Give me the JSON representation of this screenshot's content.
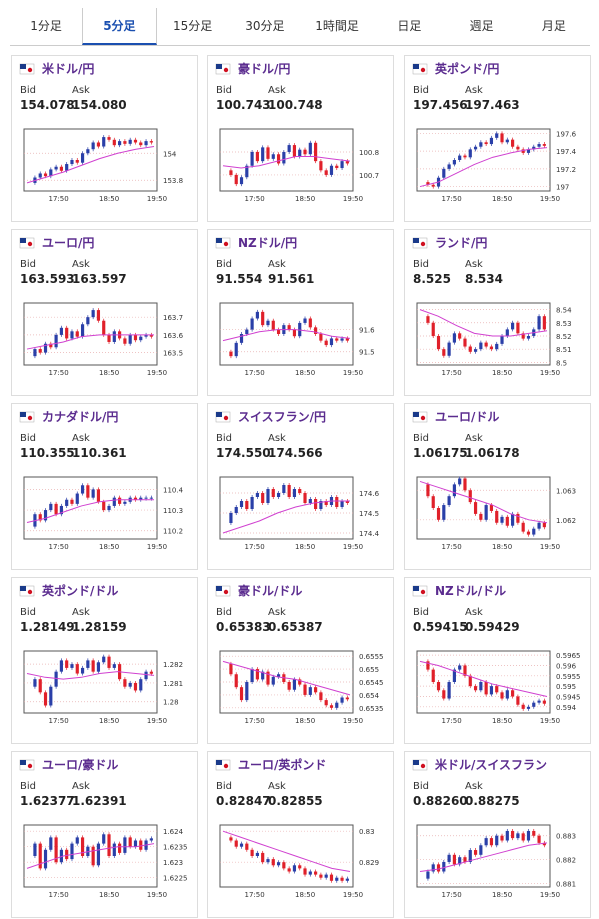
{
  "tabs": [
    "1分足",
    "5分足",
    "15分足",
    "30分足",
    "1時間足",
    "日足",
    "週足",
    "月足"
  ],
  "active_tab": 1,
  "candle_up_color": "#2a3fa8",
  "candle_down_color": "#e0202a",
  "ma_color": "#d040d0",
  "panels": [
    {
      "title": "米ドル/円",
      "bid_label": "Bid",
      "ask_label": "Ask",
      "bid": "154.078",
      "ask": "154.080",
      "ylim": [
        153.72,
        154.18
      ],
      "yticks": [
        154,
        153.8
      ],
      "x_labels": [
        "17:50",
        "18:50",
        "19:50"
      ],
      "closes": [
        153.78,
        153.82,
        153.85,
        153.83,
        153.88,
        153.9,
        153.87,
        153.92,
        153.95,
        153.93,
        154.0,
        154.03,
        154.08,
        154.05,
        154.12,
        154.1,
        154.06,
        154.09,
        154.07,
        154.1,
        154.08,
        154.06,
        154.09,
        154.08
      ],
      "ma": [
        153.78,
        153.82,
        153.86,
        153.91,
        153.96,
        154.0,
        154.03,
        154.05
      ]
    },
    {
      "title": "豪ドル/円",
      "bid_label": "Bid",
      "ask_label": "Ask",
      "bid": "100.743",
      "ask": "100.748",
      "ylim": [
        100.63,
        100.9
      ],
      "yticks": [
        100.8,
        100.7
      ],
      "x_labels": [
        "17:50",
        "18:50",
        "19:50"
      ],
      "closes": [
        100.72,
        100.7,
        100.66,
        100.69,
        100.74,
        100.8,
        100.76,
        100.82,
        100.77,
        100.79,
        100.75,
        100.8,
        100.83,
        100.78,
        100.81,
        100.79,
        100.84,
        100.76,
        100.72,
        100.7,
        100.74,
        100.73,
        100.76,
        100.75
      ],
      "ma": [
        100.74,
        100.73,
        100.74,
        100.76,
        100.78,
        100.78,
        100.77,
        100.76
      ]
    },
    {
      "title": "英ポンド/円",
      "bid_label": "Bid",
      "ask_label": "Ask",
      "bid": "197.456",
      "ask": "197.463",
      "ylim": [
        196.95,
        197.65
      ],
      "yticks": [
        197.6,
        197.4,
        197.2,
        197
      ],
      "x_labels": [
        "17:50",
        "18:50",
        "19:50"
      ],
      "closes": [
        197.05,
        197.02,
        197.0,
        197.1,
        197.2,
        197.25,
        197.3,
        197.35,
        197.33,
        197.42,
        197.45,
        197.5,
        197.48,
        197.55,
        197.6,
        197.5,
        197.53,
        197.45,
        197.42,
        197.38,
        197.42,
        197.45,
        197.48,
        197.46
      ],
      "ma": [
        197.0,
        197.05,
        197.15,
        197.25,
        197.33,
        197.38,
        197.42,
        197.44
      ]
    },
    {
      "title": "ユーロ/円",
      "bid_label": "Bid",
      "ask_label": "Ask",
      "bid": "163.593",
      "ask": "163.597",
      "ylim": [
        163.43,
        163.78
      ],
      "yticks": [
        163.7,
        163.6,
        163.5
      ],
      "x_labels": [
        "17:50",
        "18:50",
        "19:50"
      ],
      "closes": [
        163.48,
        163.52,
        163.5,
        163.55,
        163.53,
        163.6,
        163.64,
        163.58,
        163.62,
        163.59,
        163.66,
        163.7,
        163.74,
        163.68,
        163.6,
        163.56,
        163.62,
        163.58,
        163.55,
        163.6,
        163.57,
        163.59,
        163.6,
        163.59
      ],
      "ma": [
        163.52,
        163.54,
        163.56,
        163.59,
        163.6,
        163.6,
        163.6,
        163.6
      ]
    },
    {
      "title": "NZドル/円",
      "bid_label": "Bid",
      "ask_label": "Ask",
      "bid": "91.554",
      "ask": "91.561",
      "ylim": [
        91.44,
        91.72
      ],
      "yticks": [
        91.6,
        91.5
      ],
      "x_labels": [
        "17:50",
        "18:50",
        "19:50"
      ],
      "closes": [
        91.5,
        91.48,
        91.54,
        91.58,
        91.6,
        91.65,
        91.68,
        91.62,
        91.64,
        91.6,
        91.58,
        91.62,
        91.6,
        91.57,
        91.63,
        91.65,
        91.61,
        91.58,
        91.55,
        91.53,
        91.56,
        91.55,
        91.56,
        91.55
      ],
      "ma": [
        91.55,
        91.57,
        91.59,
        91.6,
        91.6,
        91.59,
        91.57,
        91.56
      ]
    },
    {
      "title": "ランド/円",
      "bid_label": "Bid",
      "ask_label": "Ask",
      "bid": "8.525",
      "ask": "8.534",
      "ylim": [
        8.498,
        8.545
      ],
      "yticks": [
        8.54,
        8.53,
        8.52,
        8.51,
        8.5
      ],
      "x_labels": [
        "17:50",
        "18:50",
        "19:50"
      ],
      "closes": [
        8.535,
        8.53,
        8.52,
        8.51,
        8.505,
        8.515,
        8.522,
        8.518,
        8.512,
        8.508,
        8.51,
        8.515,
        8.512,
        8.51,
        8.514,
        8.52,
        8.525,
        8.53,
        8.522,
        8.518,
        8.52,
        8.525,
        8.535,
        8.525
      ],
      "ma": [
        8.54,
        8.535,
        8.528,
        8.522,
        8.52,
        8.52,
        8.522,
        8.524
      ]
    },
    {
      "title": "カナダドル/円",
      "bid_label": "Bid",
      "ask_label": "Ask",
      "bid": "110.355",
      "ask": "110.361",
      "ylim": [
        110.16,
        110.46
      ],
      "yticks": [
        110.4,
        110.3,
        110.2
      ],
      "x_labels": [
        "17:50",
        "18:50",
        "19:50"
      ],
      "closes": [
        110.22,
        110.28,
        110.25,
        110.3,
        110.33,
        110.28,
        110.32,
        110.35,
        110.33,
        110.38,
        110.42,
        110.36,
        110.4,
        110.34,
        110.3,
        110.32,
        110.36,
        110.33,
        110.34,
        110.36,
        110.35,
        110.36,
        110.36,
        110.36
      ],
      "ma": [
        110.24,
        110.26,
        110.29,
        110.32,
        110.34,
        110.35,
        110.35,
        110.35
      ]
    },
    {
      "title": "スイスフラン/円",
      "bid_label": "Bid",
      "ask_label": "Ask",
      "bid": "174.550",
      "ask": "174.566",
      "ylim": [
        174.37,
        174.68
      ],
      "yticks": [
        174.6,
        174.5,
        174.4
      ],
      "x_labels": [
        "17:50",
        "18:50",
        "19:50"
      ],
      "closes": [
        174.45,
        174.5,
        174.53,
        174.56,
        174.52,
        174.58,
        174.6,
        174.55,
        174.62,
        174.58,
        174.6,
        174.64,
        174.58,
        174.62,
        174.6,
        174.55,
        174.57,
        174.52,
        174.56,
        174.54,
        174.58,
        174.53,
        174.56,
        174.55
      ],
      "ma": [
        174.4,
        174.43,
        174.46,
        174.5,
        174.53,
        174.55,
        174.56,
        174.56
      ]
    },
    {
      "title": "ユーロ/ドル",
      "bid_label": "Bid",
      "ask_label": "Ask",
      "bid": "1.06175",
      "ask": "1.06178",
      "ylim": [
        1.06135,
        1.06345
      ],
      "yticks": [
        1.063,
        1.062
      ],
      "x_labels": [
        "17:50",
        "18:50",
        "19:50"
      ],
      "closes": [
        1.0632,
        1.0628,
        1.0624,
        1.062,
        1.0625,
        1.0628,
        1.0632,
        1.0634,
        1.063,
        1.0626,
        1.0622,
        1.062,
        1.0625,
        1.0623,
        1.0619,
        1.0621,
        1.0618,
        1.0622,
        1.0619,
        1.0616,
        1.0615,
        1.0617,
        1.0619,
        1.06175
      ],
      "ma": [
        1.0633,
        1.0631,
        1.0629,
        1.0627,
        1.0625,
        1.0622,
        1.062,
        1.0619
      ]
    },
    {
      "title": "英ポンド/ドル",
      "bid_label": "Bid",
      "ask_label": "Ask",
      "bid": "1.28149",
      "ask": "1.28159",
      "ylim": [
        1.2794,
        1.2827
      ],
      "yticks": [
        1.282,
        1.281,
        1.28
      ],
      "x_labels": [
        "17:50",
        "18:50",
        "19:50"
      ],
      "closes": [
        1.2808,
        1.2812,
        1.2805,
        1.2798,
        1.2808,
        1.2816,
        1.2822,
        1.2818,
        1.282,
        1.2815,
        1.2818,
        1.2822,
        1.2816,
        1.2821,
        1.2824,
        1.2818,
        1.282,
        1.2812,
        1.2808,
        1.281,
        1.2806,
        1.2812,
        1.2816,
        1.28149
      ],
      "ma": [
        1.2815,
        1.2813,
        1.2812,
        1.2813,
        1.2815,
        1.2816,
        1.2815,
        1.2814
      ]
    },
    {
      "title": "豪ドル/ドル",
      "bid_label": "Bid",
      "ask_label": "Ask",
      "bid": "0.65383",
      "ask": "0.65387",
      "ylim": [
        0.6533,
        0.6557
      ],
      "yticks": [
        0.6555,
        0.655,
        0.6545,
        0.654,
        0.6535
      ],
      "x_labels": [
        "17:50",
        "18:50",
        "19:50"
      ],
      "closes": [
        0.6552,
        0.6548,
        0.6543,
        0.6538,
        0.6545,
        0.655,
        0.6546,
        0.6549,
        0.6544,
        0.6547,
        0.6548,
        0.6545,
        0.6542,
        0.6546,
        0.6544,
        0.654,
        0.6543,
        0.6541,
        0.6538,
        0.6536,
        0.6535,
        0.6537,
        0.6539,
        0.65383
      ],
      "ma": [
        0.6553,
        0.6551,
        0.6549,
        0.6547,
        0.6546,
        0.6544,
        0.6542,
        0.654
      ]
    },
    {
      "title": "NZドル/ドル",
      "bid_label": "Bid",
      "ask_label": "Ask",
      "bid": "0.59415",
      "ask": "0.59429",
      "ylim": [
        0.5937,
        0.5967
      ],
      "yticks": [
        0.5965,
        0.596,
        0.5955,
        0.595,
        0.5945,
        0.594
      ],
      "x_labels": [
        "17:50",
        "18:50",
        "19:50"
      ],
      "closes": [
        0.5962,
        0.5958,
        0.5952,
        0.5948,
        0.5944,
        0.5952,
        0.5958,
        0.596,
        0.5955,
        0.595,
        0.5948,
        0.5952,
        0.5946,
        0.595,
        0.5947,
        0.5944,
        0.5948,
        0.5945,
        0.5941,
        0.5939,
        0.594,
        0.5942,
        0.5943,
        0.59415
      ],
      "ma": [
        0.5962,
        0.596,
        0.5957,
        0.5954,
        0.5951,
        0.5949,
        0.5947,
        0.5945
      ]
    },
    {
      "title": "ユーロ/豪ドル",
      "bid_label": "Bid",
      "ask_label": "Ask",
      "bid": "1.62377",
      "ask": "1.62391",
      "ylim": [
        1.6222,
        1.6242
      ],
      "yticks": [
        1.624,
        1.6235,
        1.623,
        1.6225
      ],
      "x_labels": [
        "17:50",
        "18:50",
        "19:50"
      ],
      "closes": [
        1.6232,
        1.6236,
        1.6228,
        1.6234,
        1.6238,
        1.623,
        1.6234,
        1.6231,
        1.6236,
        1.6238,
        1.6232,
        1.6235,
        1.6229,
        1.6236,
        1.6239,
        1.6232,
        1.6236,
        1.6233,
        1.6238,
        1.6235,
        1.6237,
        1.6234,
        1.6237,
        1.62377
      ],
      "ma": [
        1.6228,
        1.623,
        1.6232,
        1.6233,
        1.6234,
        1.6235,
        1.6235,
        1.6236
      ]
    },
    {
      "title": "ユーロ/英ポンド",
      "bid_label": "Bid",
      "ask_label": "Ask",
      "bid": "0.82847",
      "ask": "0.82855",
      "ylim": [
        0.8282,
        0.8302
      ],
      "yticks": [
        0.83,
        0.829
      ],
      "x_labels": [
        "17:50",
        "18:50",
        "19:50"
      ],
      "closes": [
        0.8298,
        0.8297,
        0.8295,
        0.8296,
        0.8294,
        0.8292,
        0.8293,
        0.829,
        0.8291,
        0.8289,
        0.829,
        0.8288,
        0.8287,
        0.8289,
        0.8288,
        0.8286,
        0.8287,
        0.8286,
        0.8285,
        0.8286,
        0.8284,
        0.8285,
        0.8284,
        0.82847
      ],
      "ma": [
        0.83,
        0.8298,
        0.8296,
        0.8294,
        0.8292,
        0.829,
        0.8288,
        0.8287
      ]
    },
    {
      "title": "米ドル/スイスフラン",
      "bid_label": "Bid",
      "ask_label": "Ask",
      "bid": "0.88260",
      "ask": "0.88275",
      "ylim": [
        0.88085,
        0.88345
      ],
      "yticks": [
        0.883,
        0.882,
        0.881
      ],
      "x_labels": [
        "17:50",
        "18:50",
        "19:50"
      ],
      "closes": [
        0.8812,
        0.8815,
        0.8818,
        0.8815,
        0.8819,
        0.8822,
        0.8818,
        0.8821,
        0.8819,
        0.8824,
        0.8822,
        0.8826,
        0.8829,
        0.8826,
        0.883,
        0.8828,
        0.8832,
        0.8829,
        0.8831,
        0.8828,
        0.8832,
        0.883,
        0.8827,
        0.8826
      ],
      "ma": [
        0.8815,
        0.8816,
        0.8818,
        0.882,
        0.8822,
        0.8824,
        0.8826,
        0.8827
      ]
    }
  ]
}
